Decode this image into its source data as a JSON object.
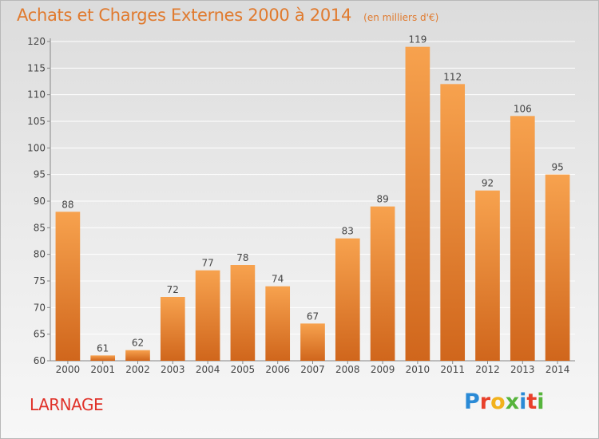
{
  "colors": {
    "title": "#e07a2e",
    "bar_light": "#f7a24e",
    "bar_dark": "#d0661c",
    "axis": "#888888",
    "grid": "#ffffff",
    "place": "#e0322a"
  },
  "header": {
    "title": "Achats et Charges Externes 2000 à 2014",
    "subtitle": "(en milliers d'€)"
  },
  "footer": {
    "place": "LARNAGE",
    "brand": "Proxiti",
    "brand_letters": [
      {
        "ch": "P",
        "color": "#2a8ad6"
      },
      {
        "ch": "r",
        "color": "#e8402a"
      },
      {
        "ch": "o",
        "color": "#f2b21c"
      },
      {
        "ch": "x",
        "color": "#56b43c"
      },
      {
        "ch": "i",
        "color": "#2a8ad6"
      },
      {
        "ch": "t",
        "color": "#e8402a"
      },
      {
        "ch": "i",
        "color": "#56b43c"
      }
    ]
  },
  "chart_data": {
    "type": "bar",
    "title": "Achats et Charges Externes 2000 à 2014",
    "subtitle": "(en milliers d'€)",
    "xlabel": "",
    "ylabel": "",
    "categories": [
      "2000",
      "2001",
      "2002",
      "2003",
      "2004",
      "2005",
      "2006",
      "2007",
      "2008",
      "2009",
      "2010",
      "2011",
      "2012",
      "2013",
      "2014"
    ],
    "values": [
      88,
      61,
      62,
      72,
      77,
      78,
      74,
      67,
      83,
      89,
      119,
      112,
      92,
      106,
      95
    ],
    "ylim": [
      60,
      120
    ],
    "yticks": [
      60,
      65,
      70,
      75,
      80,
      85,
      90,
      95,
      100,
      105,
      110,
      115,
      120
    ],
    "grid": true,
    "data_labels": true,
    "legend": "none"
  }
}
